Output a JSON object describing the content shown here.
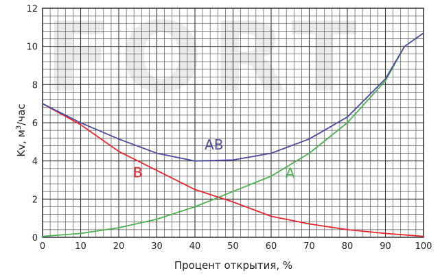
{
  "chart_data": {
    "type": "line",
    "xlabel": "Процент открытия, %",
    "ylabel_main": "Kv, м",
    "ylabel_sup": "3",
    "ylabel_tail": "/час",
    "xlim": [
      0,
      100
    ],
    "ylim": [
      0,
      12
    ],
    "x_ticks": [
      0,
      10,
      20,
      30,
      40,
      50,
      60,
      70,
      80,
      90,
      100
    ],
    "y_ticks": [
      0,
      2,
      4,
      6,
      8,
      10,
      12
    ],
    "grid": true,
    "watermark": "FORT",
    "series": [
      {
        "name": "A",
        "color": "#4caf50",
        "x": [
          0,
          10,
          20,
          30,
          40,
          50,
          60,
          70,
          80,
          90,
          95,
          100
        ],
        "y": [
          0.05,
          0.2,
          0.5,
          0.95,
          1.6,
          2.4,
          3.2,
          4.4,
          6.0,
          8.2,
          10.0,
          10.7
        ]
      },
      {
        "name": "B",
        "color": "#e8242c",
        "x": [
          0,
          10,
          20,
          30,
          40,
          50,
          60,
          70,
          80,
          90,
          100
        ],
        "y": [
          7.0,
          5.9,
          4.5,
          3.5,
          2.5,
          1.85,
          1.1,
          0.7,
          0.4,
          0.2,
          0.05
        ]
      },
      {
        "name": "AB",
        "color": "#4a4b9c",
        "x": [
          0,
          10,
          20,
          30,
          40,
          50,
          60,
          70,
          80,
          90,
          95,
          100
        ],
        "y": [
          7.0,
          6.0,
          5.15,
          4.4,
          4.0,
          4.05,
          4.4,
          5.15,
          6.3,
          8.3,
          10.0,
          10.7
        ]
      }
    ],
    "series_labels": [
      {
        "name": "AB",
        "color": "#4a4b9c",
        "at_x": 45,
        "at_y": 4.6
      },
      {
        "name": "B",
        "color": "#e8242c",
        "at_x": 25,
        "at_y": 3.15
      },
      {
        "name": "A",
        "color": "#4caf50",
        "at_x": 65,
        "at_y": 3.1
      }
    ]
  }
}
